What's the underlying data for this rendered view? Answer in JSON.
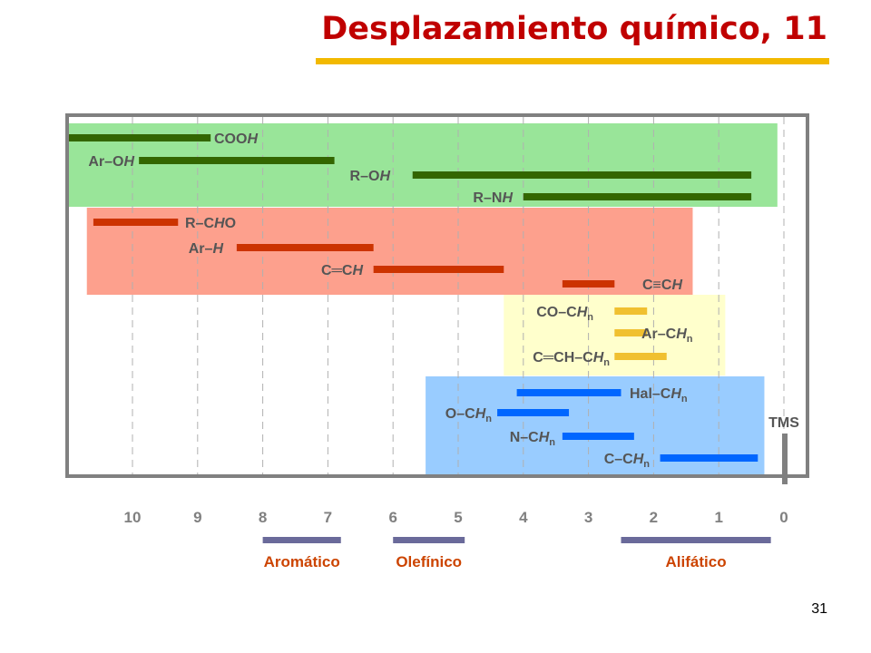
{
  "slide": {
    "title": "Desplazamiento químico, 11",
    "page_number": "31"
  },
  "chart_data": {
    "type": "bar",
    "title": "",
    "xlabel": "",
    "ylabel": "",
    "x_axis_reversed": true,
    "xlim": [
      11.0,
      -0.5
    ],
    "x_ticks": [
      "10",
      "9",
      "8",
      "7",
      "6",
      "5",
      "4",
      "3",
      "2",
      "1",
      "0"
    ],
    "grid": "vertical dashed lines",
    "colors": {
      "green": "#99e599",
      "green_bar": "#336600",
      "salmon": "#fda08d",
      "salmon_bar": "#cc3300",
      "yellow": "#ffffcc",
      "yellow_bar": "#f0c030",
      "blue": "#99ccff",
      "blue_bar": "#0066ff",
      "label": "#555555",
      "band": "#6a6a9a",
      "region_label": "#cc4400",
      "tms": "#808080"
    },
    "groups": [
      {
        "name": "",
        "color": "green",
        "range": [
          11.0,
          0.1
        ],
        "items": [
          {
            "label": [
              "COO",
              "H"
            ],
            "italic": [
              false,
              true
            ],
            "range": [
              11.0,
              8.8
            ]
          },
          {
            "label": [
              "Ar–O",
              "H"
            ],
            "italic": [
              false,
              true
            ],
            "range": [
              9.9,
              6.9
            ]
          },
          {
            "label": [
              "R–O",
              "H"
            ],
            "italic": [
              false,
              true
            ],
            "range": [
              5.7,
              0.5
            ]
          },
          {
            "label": [
              "R–N",
              "H"
            ],
            "italic": [
              false,
              true
            ],
            "range": [
              4.0,
              0.5
            ]
          }
        ]
      },
      {
        "name": "",
        "color": "salmon",
        "range": [
          10.7,
          1.4
        ],
        "items": [
          {
            "label": [
              "R–C",
              "H",
              "O"
            ],
            "italic": [
              false,
              true,
              false
            ],
            "range": [
              10.6,
              9.3
            ]
          },
          {
            "label": [
              "Ar–",
              "H"
            ],
            "italic": [
              false,
              true
            ],
            "range": [
              8.4,
              6.3
            ]
          },
          {
            "label": [
              "C═C",
              "H"
            ],
            "italic": [
              false,
              true
            ],
            "range": [
              6.3,
              4.3
            ]
          },
          {
            "label": [
              "C≡C",
              "H"
            ],
            "italic": [
              false,
              true
            ],
            "range": [
              3.4,
              2.6
            ]
          }
        ]
      },
      {
        "name": "",
        "color": "yellow",
        "range": [
          4.3,
          0.9
        ],
        "items": [
          {
            "label": [
              "CO–C",
              "H",
              "n"
            ],
            "italic": [
              false,
              true,
              false
            ],
            "range": [
              2.6,
              2.1
            ]
          },
          {
            "label": [
              "Ar–C",
              "H",
              "n"
            ],
            "italic": [
              false,
              true,
              false
            ],
            "range": [
              2.6,
              2.1
            ]
          },
          {
            "label": [
              "C═CH–C",
              "H",
              "n"
            ],
            "italic": [
              false,
              true,
              false
            ],
            "range": [
              2.6,
              1.8
            ]
          }
        ]
      },
      {
        "name": "",
        "color": "blue",
        "range": [
          5.5,
          0.3
        ],
        "items": [
          {
            "label": [
              "Hal–C",
              "H",
              "n"
            ],
            "italic": [
              false,
              true,
              false
            ],
            "range": [
              4.1,
              2.5
            ]
          },
          {
            "label": [
              "O–C",
              "H",
              "n"
            ],
            "italic": [
              false,
              true,
              false
            ],
            "range": [
              4.4,
              3.3
            ]
          },
          {
            "label": [
              "N–C",
              "H",
              "n"
            ],
            "italic": [
              false,
              true,
              false
            ],
            "range": [
              3.4,
              2.3
            ]
          },
          {
            "label": [
              "C–C",
              "H",
              "n"
            ],
            "italic": [
              false,
              true,
              false
            ],
            "range": [
              1.9,
              0.4
            ]
          }
        ]
      }
    ],
    "reference": {
      "label": "TMS",
      "value": 0.0
    },
    "regions": [
      {
        "label": "Aromático",
        "range": [
          8.0,
          6.8
        ]
      },
      {
        "label": "Olefínico",
        "range": [
          6.0,
          4.9
        ]
      },
      {
        "label": "Alifático",
        "range": [
          2.5,
          0.2
        ]
      }
    ]
  }
}
